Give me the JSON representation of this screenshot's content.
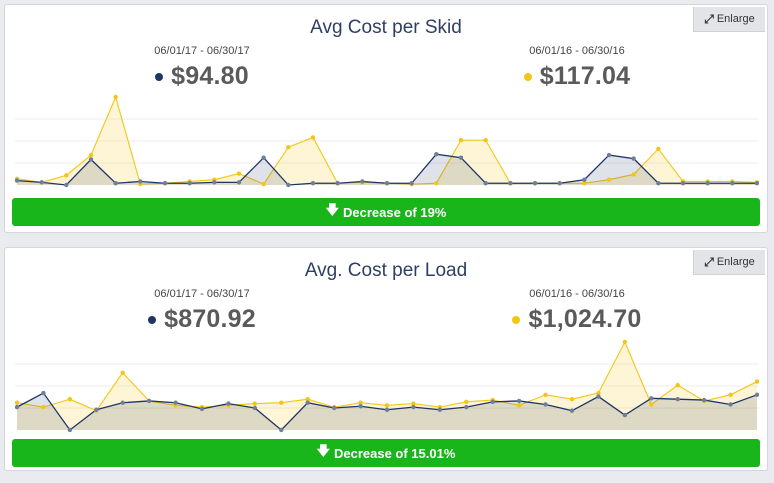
{
  "colors": {
    "current_series": "#1f3566",
    "prior_series": "#f3c614",
    "decrease_banner": "#18b51b"
  },
  "cards": [
    {
      "title": "Avg Cost per Skid",
      "enlarge_label": "Enlarge",
      "current": {
        "range": "06/01/17 - 06/30/17",
        "value": "$94.80"
      },
      "prior": {
        "range": "06/01/16 - 06/30/16",
        "value": "$117.04"
      },
      "banner": "Decrease of 19%",
      "chart_data": {
        "type": "area",
        "ylim": [
          0,
          100
        ],
        "series": [
          {
            "values": [
              5,
              3,
              0,
              29,
              2,
              4,
              2,
              2,
              3,
              3,
              31,
              0,
              2,
              2,
              4,
              2,
              2,
              35,
              31,
              2,
              2,
              2,
              2,
              6,
              34,
              30,
              2,
              2,
              2,
              2,
              2
            ]
          },
          {
            "values": [
              7,
              3,
              11,
              34,
              100,
              1,
              2,
              4,
              6,
              13,
              1,
              43,
              54,
              2,
              3,
              2,
              1,
              2,
              51,
              51,
              2,
              2,
              2,
              2,
              6,
              12,
              41,
              4,
              4,
              4,
              3
            ]
          }
        ]
      }
    },
    {
      "title": "Avg. Cost per Load",
      "enlarge_label": "Enlarge",
      "current": {
        "range": "06/01/17 - 06/30/17",
        "value": "$870.92"
      },
      "prior": {
        "range": "06/01/16 - 06/30/16",
        "value": "$1,024.70"
      },
      "banner": "Decrease of 15.01%",
      "chart_data": {
        "type": "area",
        "ylim": [
          0,
          100
        ],
        "series": [
          {
            "values": [
              26,
              42,
              0,
              23,
              31,
              33,
              31,
              24,
              30,
              25,
              0,
              31,
              25,
              27,
              23,
              26,
              23,
              26,
              32,
              33,
              29,
              22,
              38,
              17,
              36,
              35,
              34,
              29,
              40
            ]
          },
          {
            "values": [
              31,
              26,
              35,
              22,
              65,
              33,
              28,
              26,
              28,
              30,
              31,
              35,
              26,
              31,
              28,
              30,
              26,
              32,
              34,
              28,
              40,
              35,
              42,
              100,
              29,
              51,
              33,
              40,
              55
            ]
          }
        ]
      }
    }
  ]
}
